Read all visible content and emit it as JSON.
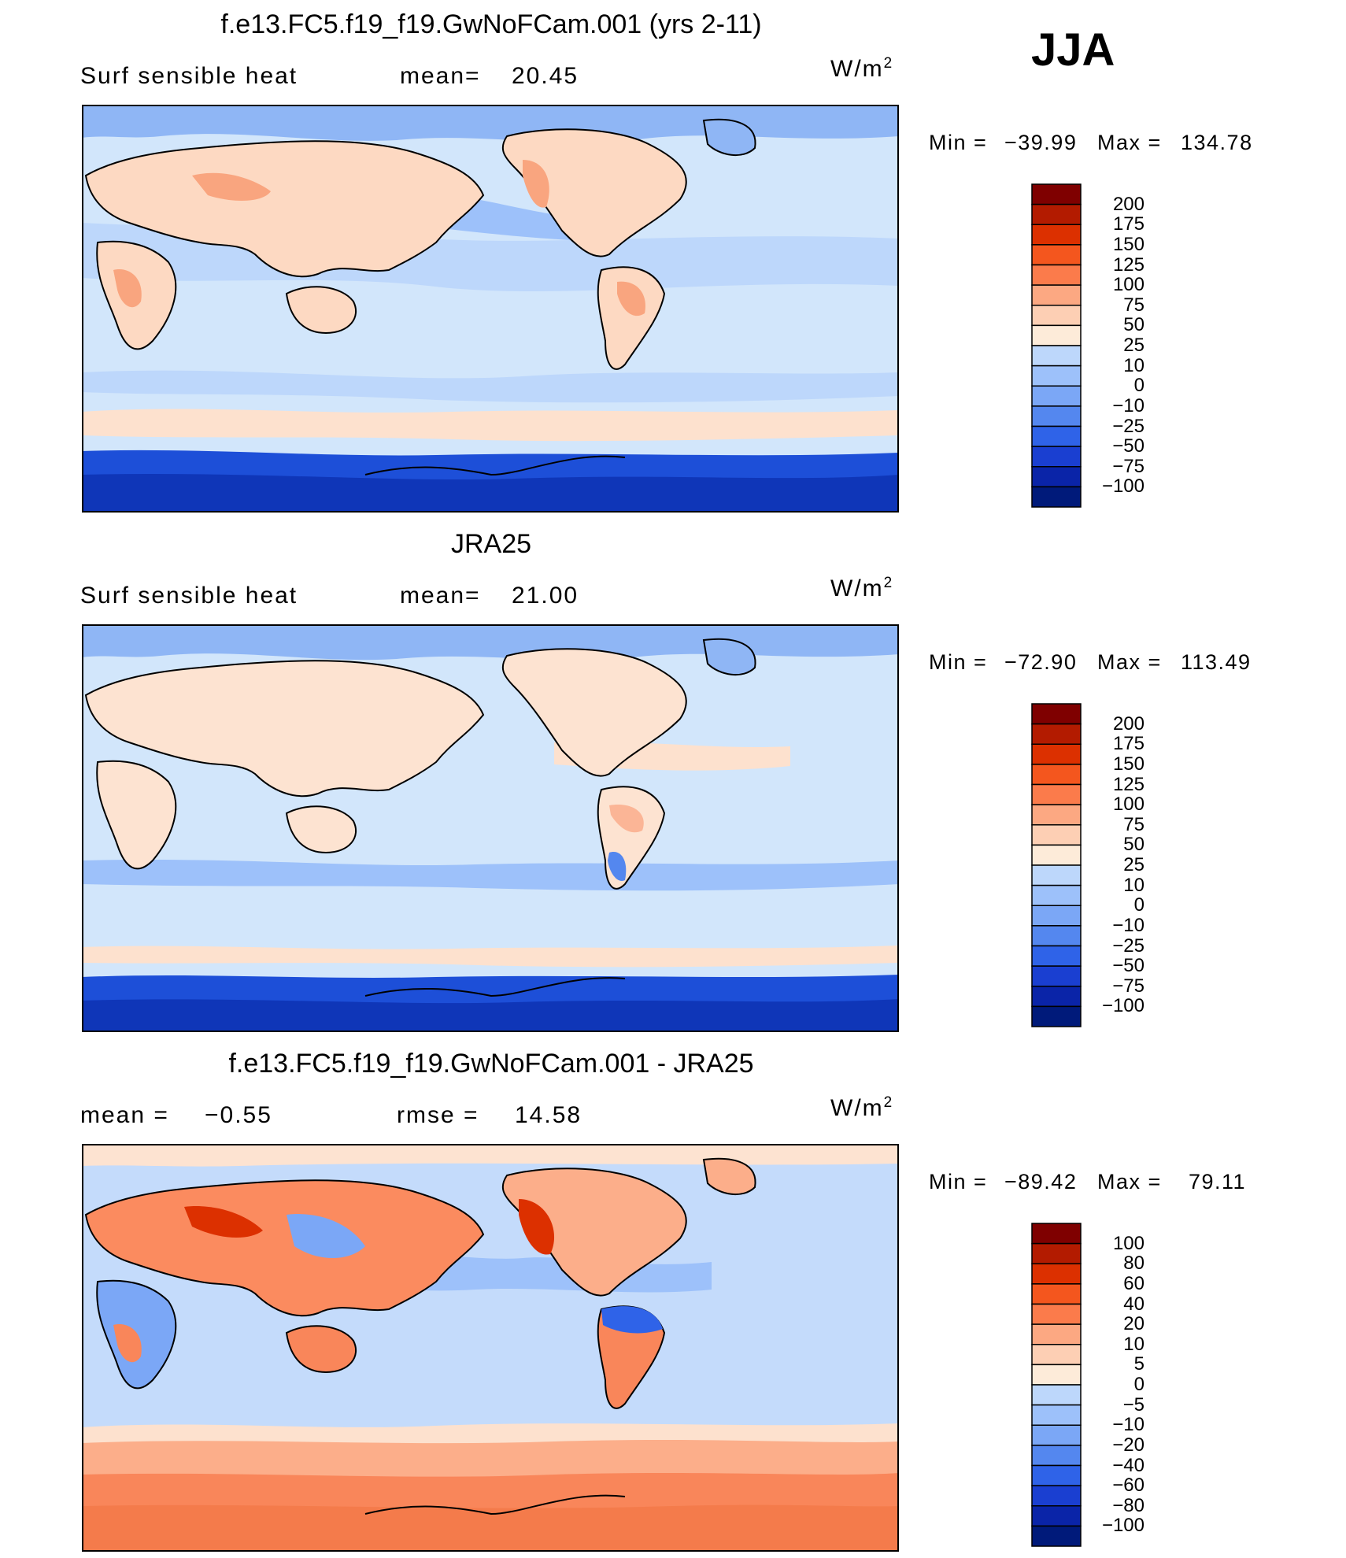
{
  "season": "JJA",
  "units": {
    "base": "W/m",
    "exp": "2"
  },
  "panels": [
    {
      "title": "f.e13.FC5.f19_f19.GwNoFCam.001 (yrs 2-11)",
      "variable": "Surf  sensible  heat",
      "stat1_label": "mean=",
      "stat1_value": "20.45",
      "min_label": "Min  =",
      "min_value": "−39.99",
      "max_label": "Max  =",
      "max_value": "134.78",
      "colorbar_levels": [
        "200",
        "175",
        "150",
        "125",
        "100",
        "75",
        "50",
        "25",
        "10",
        "0",
        "−10",
        "−25",
        "−50",
        "−75",
        "−100"
      ]
    },
    {
      "title": "JRA25",
      "variable": "Surf  sensible  heat",
      "stat1_label": "mean=",
      "stat1_value": "21.00",
      "min_label": "Min  =",
      "min_value": "−72.90",
      "max_label": "Max  =",
      "max_value": "113.49",
      "colorbar_levels": [
        "200",
        "175",
        "150",
        "125",
        "100",
        "75",
        "50",
        "25",
        "10",
        "0",
        "−10",
        "−25",
        "−50",
        "−75",
        "−100"
      ]
    },
    {
      "title": "f.e13.FC5.f19_f19.GwNoFCam.001 - JRA25",
      "stat1_label": "mean  =",
      "stat1_value": "−0.55",
      "stat2_label": "rmse  =",
      "stat2_value": "14.58",
      "min_label": "Min  =",
      "min_value": "−89.42",
      "max_label": "Max  =",
      "max_value": "79.11",
      "colorbar_levels": [
        "100",
        "80",
        "60",
        "40",
        "20",
        "10",
        "5",
        "0",
        "−5",
        "−10",
        "−20",
        "−40",
        "−60",
        "−80",
        "−100"
      ]
    }
  ],
  "colors": {
    "scale": [
      "#7f0000",
      "#b31b00",
      "#dc3000",
      "#f4561e",
      "#fb7b4b",
      "#fca882",
      "#fdcfb4",
      "#fdebd9",
      "#d8eafc",
      "#bdd7fb",
      "#9dc1fa",
      "#7ba7f6",
      "#5487ef",
      "#2f63e8",
      "#1a3fd1",
      "#0a24a8",
      "#001a7a"
    ],
    "ocean_model": "#d2e6fb",
    "ocean_diff": "#c4dbfb",
    "land_warm": "#fdd9c2",
    "land_hot": "#f9a57f",
    "antarctic": "#1d4fd8",
    "arctic": "#8fb6f5",
    "coast": "#000000"
  }
}
